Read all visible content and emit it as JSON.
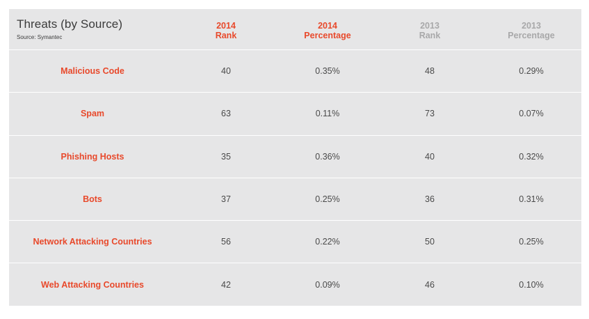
{
  "table": {
    "title": "Threats (by Source)",
    "source": "Source: Symantec",
    "columns": [
      {
        "year": "2014",
        "label": "Rank"
      },
      {
        "year": "2014",
        "label": "Percentage"
      },
      {
        "year": "2013",
        "label": "Rank"
      },
      {
        "year": "2013",
        "label": "Percentage"
      }
    ],
    "rows": [
      {
        "name": "Malicious Code",
        "rank_2014": "40",
        "pct_2014": "0.35%",
        "rank_2013": "48",
        "pct_2013": "0.29%"
      },
      {
        "name": "Spam",
        "rank_2014": "63",
        "pct_2014": "0.11%",
        "rank_2013": "73",
        "pct_2013": "0.07%"
      },
      {
        "name": "Phishing Hosts",
        "rank_2014": "35",
        "pct_2014": "0.36%",
        "rank_2013": "40",
        "pct_2013": "0.32%"
      },
      {
        "name": "Bots",
        "rank_2014": "37",
        "pct_2014": "0.25%",
        "rank_2013": "36",
        "pct_2013": "0.31%"
      },
      {
        "name": "Network Attacking Countries",
        "rank_2014": "56",
        "pct_2014": "0.22%",
        "rank_2013": "50",
        "pct_2013": "0.25%"
      },
      {
        "name": "Web Attacking Countries",
        "rank_2014": "42",
        "pct_2014": "0.09%",
        "rank_2013": "46",
        "pct_2013": "0.10%"
      }
    ]
  },
  "colors": {
    "accent": "#e8492b",
    "muted": "#a8a8a9",
    "background": "#e6e6e7"
  }
}
